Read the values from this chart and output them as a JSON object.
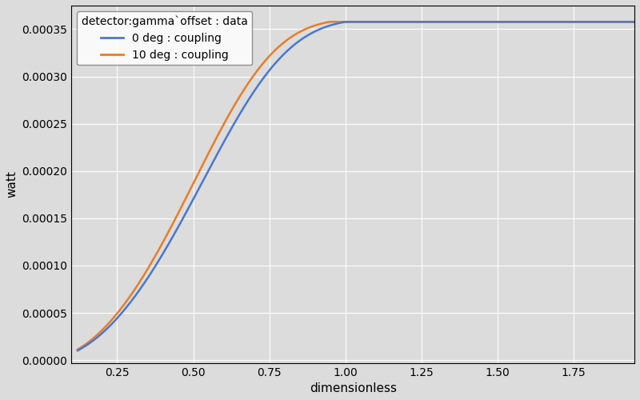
{
  "title": "detector:gamma`offset : data",
  "xlabel": "dimensionless",
  "ylabel": "watt",
  "line0_label": "0 deg : coupling",
  "line1_label": "10 deg : coupling",
  "line0_color": "#4878cf",
  "line1_color": "#e87d29",
  "xlim": [
    0.1,
    1.95
  ],
  "ylim": [
    -3e-06,
    0.000375
  ],
  "xticks": [
    0.25,
    0.5,
    0.75,
    1.0,
    1.25,
    1.5,
    1.75
  ],
  "yticks": [
    0.0,
    5e-05,
    0.0001,
    0.00015,
    0.0002,
    0.00025,
    0.0003,
    0.00035
  ],
  "max_coupling": 0.0003615,
  "background_color": "#dcdcdc",
  "figure_bg": "#dcdcdc",
  "legend_loc": "upper left",
  "grid_color": "#ffffff",
  "line_width": 1.8,
  "figsize": [
    8.0,
    5.0
  ],
  "dpi": 100
}
